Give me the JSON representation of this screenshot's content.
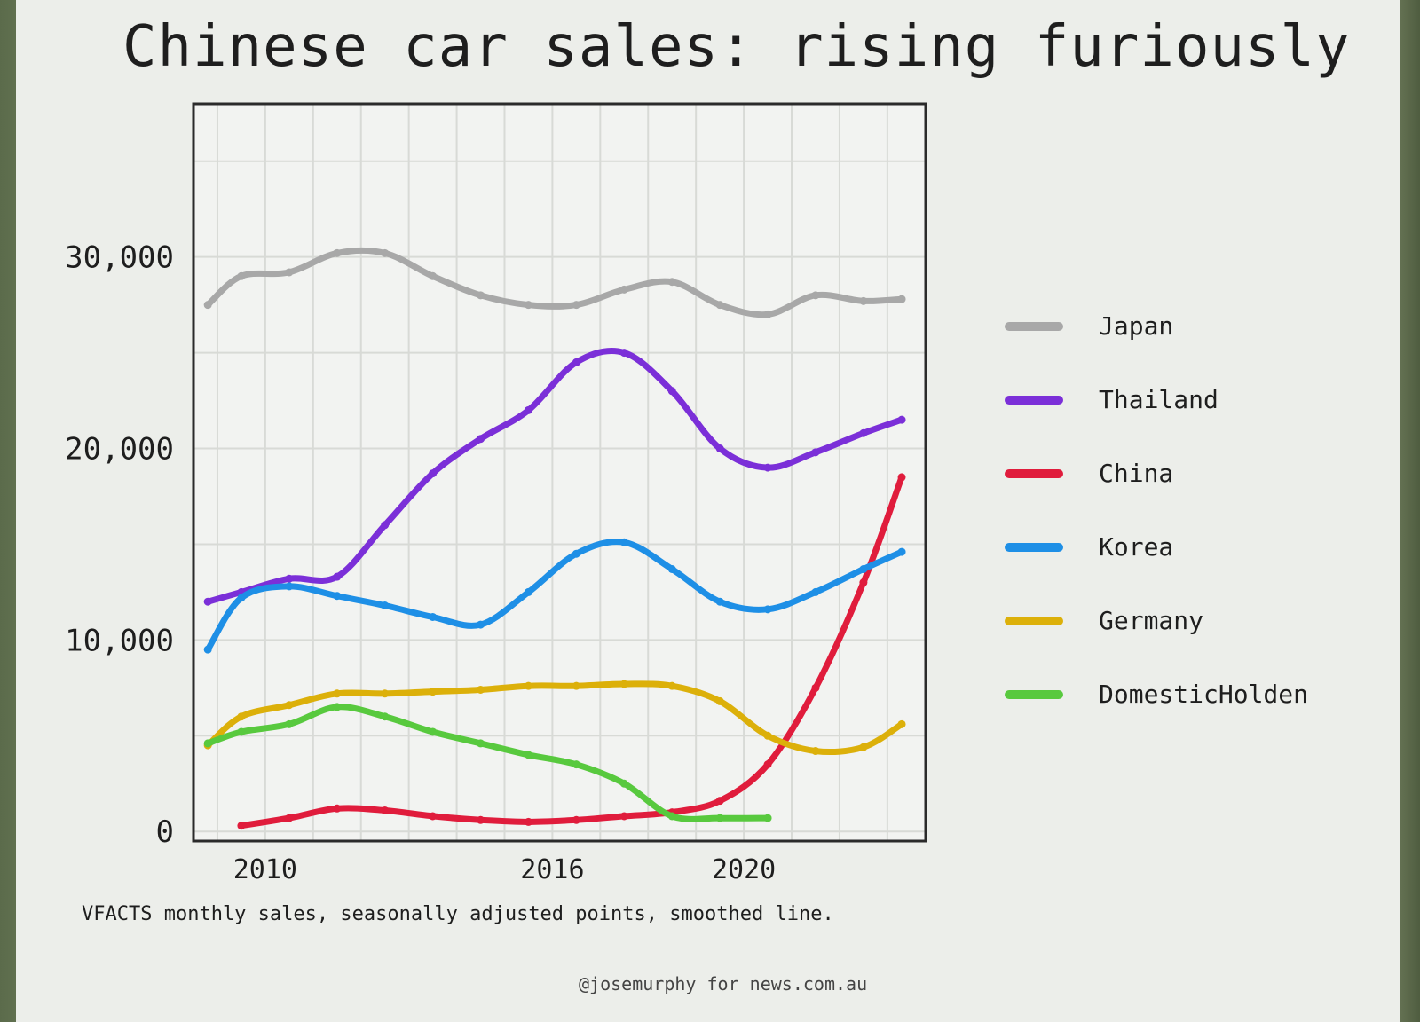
{
  "chart_data": {
    "type": "line",
    "title": "Chinese car sales: rising furiously",
    "caption": "VFACTS monthly sales, seasonally adjusted points, smoothed line.",
    "credit": "@josemurphy for news.com.au",
    "x_ticks": [
      "2010",
      "2016",
      "2020"
    ],
    "y_ticks": [
      "0",
      "10,000",
      "20,000",
      "30,000"
    ],
    "xlim": [
      2008.5,
      2023.8
    ],
    "ylim": [
      -500,
      38000
    ],
    "grid": true,
    "legend_position": "right",
    "series": [
      {
        "name": "Japan",
        "color": "#a8a8a8",
        "x": [
          2008.8,
          2009.5,
          2010.5,
          2011.5,
          2012.5,
          2013.5,
          2014.5,
          2015.5,
          2016.5,
          2017.5,
          2018.5,
          2019.5,
          2020.5,
          2021.5,
          2022.5,
          2023.3
        ],
        "values": [
          27500,
          29000,
          29200,
          30200,
          30200,
          29000,
          28000,
          27500,
          27500,
          28300,
          28700,
          27500,
          27000,
          28000,
          27700,
          27800
        ]
      },
      {
        "name": "Thailand",
        "color": "#7b2fd8",
        "x": [
          2008.8,
          2009.5,
          2010.5,
          2011.5,
          2012.5,
          2013.5,
          2014.5,
          2015.5,
          2016.5,
          2017.5,
          2018.5,
          2019.5,
          2020.5,
          2021.5,
          2022.5,
          2023.3
        ],
        "values": [
          12000,
          12500,
          13200,
          13300,
          16000,
          18700,
          20500,
          22000,
          24500,
          25000,
          23000,
          20000,
          19000,
          19800,
          20800,
          21500
        ]
      },
      {
        "name": "China",
        "color": "#e01c3c",
        "x": [
          2009.5,
          2010.5,
          2011.5,
          2012.5,
          2013.5,
          2014.5,
          2015.5,
          2016.5,
          2017.5,
          2018.5,
          2019.5,
          2020.5,
          2021.5,
          2022.5,
          2023.3
        ],
        "values": [
          300,
          700,
          1200,
          1100,
          800,
          600,
          500,
          600,
          800,
          1000,
          1600,
          3500,
          7500,
          13000,
          18500
        ]
      },
      {
        "name": "Korea",
        "color": "#1e8fe6",
        "x": [
          2008.8,
          2009.5,
          2010.5,
          2011.5,
          2012.5,
          2013.5,
          2014.5,
          2015.5,
          2016.5,
          2017.5,
          2018.5,
          2019.5,
          2020.5,
          2021.5,
          2022.5,
          2023.3
        ],
        "values": [
          9500,
          12200,
          12800,
          12300,
          11800,
          11200,
          10800,
          12500,
          14500,
          15100,
          13700,
          12000,
          11600,
          12500,
          13700,
          14600
        ]
      },
      {
        "name": "Germany",
        "color": "#dcb00a",
        "x": [
          2008.8,
          2009.5,
          2010.5,
          2011.5,
          2012.5,
          2013.5,
          2014.5,
          2015.5,
          2016.5,
          2017.5,
          2018.5,
          2019.5,
          2020.5,
          2021.5,
          2022.5,
          2023.3
        ],
        "values": [
          4500,
          6000,
          6600,
          7200,
          7200,
          7300,
          7400,
          7600,
          7600,
          7700,
          7600,
          6800,
          5000,
          4200,
          4400,
          5600
        ]
      },
      {
        "name": "DomesticHolden",
        "color": "#58c93e",
        "x": [
          2008.8,
          2009.5,
          2010.5,
          2011.5,
          2012.5,
          2013.5,
          2014.5,
          2015.5,
          2016.5,
          2017.5,
          2018.5,
          2019.5,
          2020.5
        ],
        "values": [
          4600,
          5200,
          5600,
          6500,
          6000,
          5200,
          4600,
          4000,
          3500,
          2500,
          800,
          700,
          700
        ]
      }
    ]
  }
}
